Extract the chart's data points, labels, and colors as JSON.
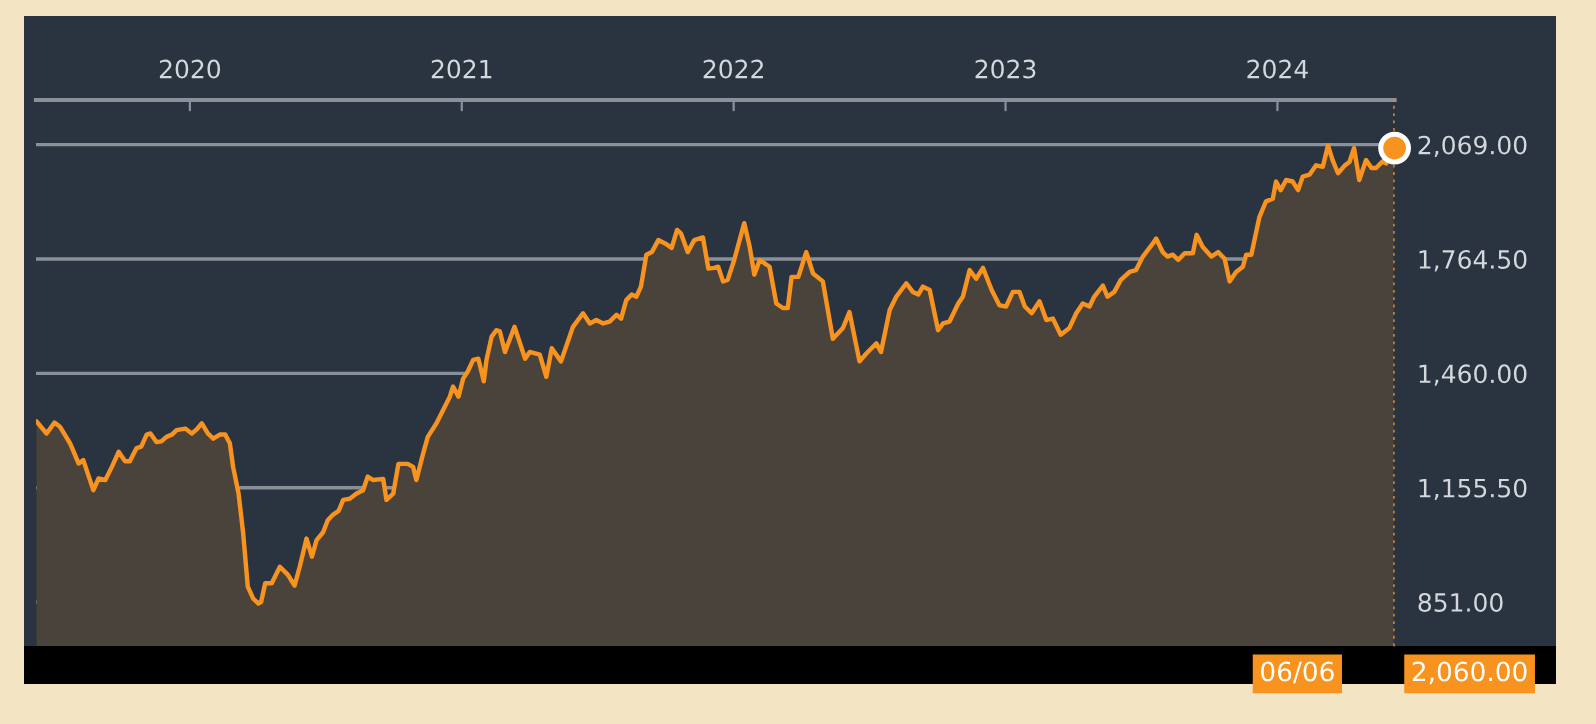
{
  "chart_data": {
    "type": "area",
    "color": "#f7931e",
    "x": [
      2019.436,
      2019.473,
      2019.502,
      2019.522,
      2019.559,
      2019.591,
      2019.608,
      2019.645,
      2019.664,
      2019.689,
      2019.713,
      2019.738,
      2019.762,
      2019.779,
      2019.804,
      2019.821,
      2019.841,
      2019.855,
      2019.877,
      2019.895,
      2019.914,
      2019.934,
      2019.951,
      2019.983,
      2020.007,
      2020.025,
      2020.044,
      2020.066,
      2020.086,
      2020.11,
      2020.13,
      2020.147,
      2020.159,
      2020.179,
      2020.196,
      2020.213,
      2020.233,
      2020.252,
      2020.262,
      2020.277,
      2020.301,
      2020.331,
      2020.36,
      2020.385,
      2020.404,
      2020.429,
      2020.449,
      2020.466,
      2020.49,
      2020.507,
      2020.527,
      2020.547,
      2020.564,
      2020.588,
      2020.613,
      2020.637,
      2020.654,
      2020.674,
      2020.711,
      2020.723,
      2020.748,
      2020.767,
      2020.801,
      2020.821,
      2020.833,
      2020.858,
      2020.875,
      2020.907,
      2020.931,
      2020.956,
      2020.968,
      2020.988,
      2021.005,
      2021.022,
      2021.042,
      2021.061,
      2021.081,
      2021.091,
      2021.11,
      2021.127,
      2021.14,
      2021.159,
      2021.194,
      2021.213,
      2021.233,
      2021.25,
      2021.287,
      2021.311,
      2021.331,
      2021.365,
      2021.409,
      2021.446,
      2021.471,
      2021.495,
      2021.52,
      2021.544,
      2021.569,
      2021.586,
      2021.605,
      2021.625,
      2021.642,
      2021.659,
      2021.679,
      2021.699,
      2021.723,
      2021.748,
      2021.772,
      2021.792,
      2021.806,
      2021.831,
      2021.855,
      2021.887,
      2021.907,
      2021.929,
      2021.943,
      2021.961,
      2021.978,
      2022.002,
      2022.039,
      2022.059,
      2022.076,
      2022.096,
      2022.132,
      2022.157,
      2022.181,
      2022.199,
      2022.213,
      2022.238,
      2022.267,
      2022.292,
      2022.328,
      2022.365,
      2022.402,
      2022.426,
      2022.463,
      2022.488,
      2022.525,
      2022.542,
      2022.574,
      2022.598,
      2022.635,
      2022.659,
      2022.679,
      2022.696,
      2022.721,
      2022.752,
      2022.77,
      2022.794,
      2022.826,
      2022.843,
      2022.868,
      2022.892,
      2022.917,
      2022.949,
      2022.978,
      2023.002,
      2023.027,
      2023.051,
      2023.071,
      2023.096,
      2023.125,
      2023.15,
      2023.174,
      2023.203,
      2023.235,
      2023.26,
      2023.284,
      2023.309,
      2023.326,
      2023.358,
      2023.375,
      2023.4,
      2023.424,
      2023.456,
      2023.48,
      2023.505,
      2023.542,
      2023.554,
      2023.578,
      2023.596,
      2023.615,
      2023.635,
      2023.659,
      2023.689,
      2023.703,
      2023.725,
      2023.757,
      2023.782,
      2023.806,
      2023.824,
      2023.848,
      2023.873,
      2023.885,
      2023.904,
      2023.934,
      2023.958,
      2023.983,
      2023.995,
      2024.012,
      2024.032,
      2024.056,
      2024.076,
      2024.093,
      2024.118,
      2024.142,
      2024.167,
      2024.186,
      2024.203,
      2024.223,
      2024.248,
      2024.265,
      2024.282,
      2024.301,
      2024.326,
      2024.346,
      2024.363,
      2024.387,
      2024.4,
      2024.431
    ],
    "values": [
      1332,
      1300,
      1329,
      1318,
      1274,
      1220,
      1229,
      1149,
      1180,
      1176,
      1211,
      1251,
      1226,
      1226,
      1261,
      1265,
      1297,
      1300,
      1277,
      1279,
      1291,
      1297,
      1309,
      1313,
      1300,
      1311,
      1327,
      1300,
      1286,
      1297,
      1297,
      1274,
      1211,
      1140,
      1034,
      892,
      860,
      847,
      851,
      901,
      901,
      945,
      924,
      895,
      945,
      1020,
      972,
      1016,
      1037,
      1069,
      1084,
      1094,
      1123,
      1126,
      1140,
      1149,
      1185,
      1176,
      1179,
      1123,
      1140,
      1219,
      1219,
      1211,
      1176,
      1247,
      1291,
      1327,
      1362,
      1398,
      1425,
      1398,
      1446,
      1465,
      1496,
      1499,
      1439,
      1496,
      1558,
      1575,
      1572,
      1517,
      1584,
      1543,
      1499,
      1517,
      1510,
      1451,
      1527,
      1492,
      1584,
      1620,
      1593,
      1602,
      1593,
      1598,
      1616,
      1606,
      1655,
      1670,
      1664,
      1691,
      1776,
      1783,
      1815,
      1806,
      1794,
      1842,
      1833,
      1783,
      1815,
      1822,
      1739,
      1741,
      1744,
      1705,
      1709,
      1762,
      1860,
      1797,
      1723,
      1762,
      1744,
      1646,
      1634,
      1634,
      1717,
      1717,
      1783,
      1726,
      1705,
      1552,
      1581,
      1623,
      1492,
      1513,
      1540,
      1517,
      1629,
      1664,
      1700,
      1677,
      1670,
      1691,
      1682,
      1575,
      1593,
      1598,
      1646,
      1664,
      1735,
      1712,
      1741,
      1682,
      1641,
      1638,
      1677,
      1677,
      1638,
      1620,
      1652,
      1602,
      1606,
      1563,
      1581,
      1620,
      1646,
      1638,
      1664,
      1694,
      1664,
      1677,
      1709,
      1730,
      1735,
      1771,
      1806,
      1819,
      1783,
      1771,
      1776,
      1762,
      1780,
      1780,
      1829,
      1797,
      1771,
      1783,
      1765,
      1705,
      1730,
      1744,
      1776,
      1776,
      1877,
      1918,
      1925,
      1971,
      1948,
      1975,
      1971,
      1948,
      1984,
      1989,
      2014,
      2010,
      2067,
      2028,
      1993,
      2014,
      2023,
      2060,
      1975,
      2028,
      2007,
      2007,
      2025,
      2019,
      2060
    ],
    "xlim": [
      2019.434,
      2024.431
    ],
    "xticks": [
      2020,
      2021,
      2022,
      2023,
      2024
    ],
    "ylim": [
      734,
      2188
    ],
    "yticks": [
      {
        "value": 851,
        "label": "851.00"
      },
      {
        "value": 1155.5,
        "label": "1,155.50"
      },
      {
        "value": 1460,
        "label": "1,460.00"
      },
      {
        "value": 1764.5,
        "label": "1,764.50"
      },
      {
        "value": 2069,
        "label": "2,069.00"
      }
    ],
    "grid": "y",
    "ref_lines": [
      {
        "axis": "x",
        "value": 2024.431,
        "label": null,
        "color": "#f7931e",
        "line_style": "dotted"
      }
    ],
    "annotations": [
      "06/06",
      "2,060.00"
    ]
  }
}
